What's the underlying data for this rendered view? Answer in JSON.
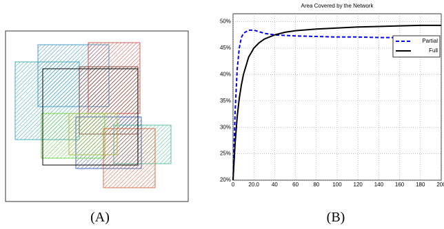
{
  "captions": [
    "(A)",
    "(B)"
  ],
  "chart_data": {
    "type": "line",
    "title": "Area Covered by the Network",
    "x": [
      0,
      2,
      4,
      6,
      8,
      10,
      15,
      20,
      25,
      30,
      40,
      50,
      60,
      80,
      100,
      120,
      140,
      160,
      180,
      200
    ],
    "series": [
      {
        "name": "Partial",
        "color": "#0000ff",
        "linestyle": "dashed",
        "values": [
          20,
          33,
          41,
          45,
          47,
          47.8,
          48.4,
          48.4,
          48.1,
          47.8,
          47.5,
          47.4,
          47.3,
          47.2,
          47.1,
          47.1,
          47.0,
          47.0,
          47.0,
          47.0
        ]
      },
      {
        "name": "Full",
        "color": "#000000",
        "linestyle": "solid",
        "values": [
          20,
          27,
          32,
          35.5,
          38,
          40,
          43.3,
          45,
          46,
          46.7,
          47.5,
          48,
          48.3,
          48.6,
          48.8,
          49,
          49.1,
          49.2,
          49.3,
          49.3
        ]
      }
    ],
    "xlim": [
      0,
      200
    ],
    "xticks": [
      0,
      {
        "value": 20,
        "label": "20.0"
      },
      40,
      60,
      80,
      100,
      120,
      140,
      160,
      180,
      200
    ],
    "ylim": [
      20,
      51.5
    ],
    "yticks": [
      {
        "value": 20,
        "label": "20%"
      },
      {
        "value": 25,
        "label": "25%"
      },
      {
        "value": 30,
        "label": "30%"
      },
      {
        "value": 35,
        "label": "35%"
      },
      {
        "value": 40,
        "label": "40%"
      },
      {
        "value": 45,
        "label": "45%"
      },
      {
        "value": 50,
        "label": "50%"
      }
    ],
    "grid": true,
    "legend": "upper right"
  }
}
